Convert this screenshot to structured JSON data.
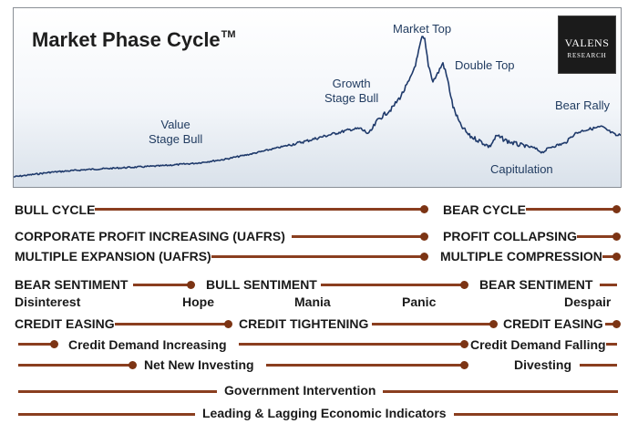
{
  "chart": {
    "title": "Market Phase Cycle",
    "title_mark": "TM",
    "labels": {
      "value_stage_1": "Value",
      "value_stage_2": "Stage Bull",
      "growth_stage_1": "Growth",
      "growth_stage_2": "Stage Bull",
      "market_top": "Market Top",
      "double_top": "Double Top",
      "bear_rally": "Bear Rally",
      "capitulation": "Capitulation"
    },
    "line_color": "#1f3a6b"
  },
  "logo": {
    "name": "VALENS",
    "sub": "RESEARCH"
  },
  "rows": {
    "bull_cycle": "BULL CYCLE",
    "bear_cycle": "BEAR CYCLE",
    "corp_profit": "CORPORATE PROFIT INCREASING (UAFRS)",
    "profit_collapsing": "PROFIT COLLAPSING",
    "multiple_expansion": "MULTIPLE EXPANSION (UAFRS)",
    "multiple_compression": "MULTIPLE COMPRESSION",
    "bear_sentiment_1": "BEAR SENTIMENT",
    "bull_sentiment": "BULL SENTIMENT",
    "bear_sentiment_2": "BEAR SENTIMENT",
    "disinterest": "Disinterest",
    "hope": "Hope",
    "mania": "Mania",
    "panic": "Panic",
    "despair": "Despair",
    "credit_easing_1": "CREDIT EASING",
    "credit_tightening": "CREDIT TIGHTENING",
    "credit_easing_2": "CREDIT EASING",
    "credit_demand_increasing": "Credit Demand Increasing",
    "credit_demand_falling": "Credit Demand Falling",
    "net_new_investing": "Net New Investing",
    "divesting": "Divesting",
    "government_intervention": "Government Intervention",
    "leading_lagging": "Leading & Lagging Economic Indicators"
  },
  "colors": {
    "connector": "#8a3e1f",
    "dot": "#7c3414",
    "text": "#1a1a1a"
  }
}
